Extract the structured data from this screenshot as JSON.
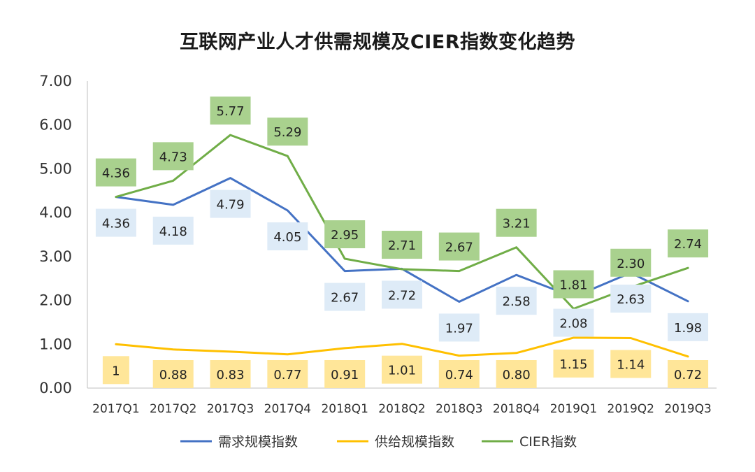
{
  "chart_data": {
    "type": "line",
    "title": "互联网产业人才供需规模及CIER指数变化趋势",
    "xlabel": "",
    "ylabel": "",
    "ylim": [
      0,
      7
    ],
    "yticks": [
      "0.00",
      "1.00",
      "2.00",
      "3.00",
      "4.00",
      "5.00",
      "6.00",
      "7.00"
    ],
    "categories": [
      "2017Q1",
      "2017Q2",
      "2017Q3",
      "2017Q4",
      "2018Q1",
      "2018Q2",
      "2018Q3",
      "2018Q4",
      "2019Q1",
      "2019Q2",
      "2019Q3"
    ],
    "grid": false,
    "legend_position": "bottom",
    "series": [
      {
        "name": "需求规模指数",
        "color": "#4472C4",
        "label_bg": "#DEEBF7",
        "label_side": "below",
        "values": [
          4.36,
          4.18,
          4.79,
          4.05,
          2.67,
          2.72,
          1.97,
          2.58,
          2.08,
          2.63,
          1.98
        ],
        "labels": [
          "4.36",
          "4.18",
          "4.79",
          "4.05",
          "2.67",
          "2.72",
          "1.97",
          "2.58",
          "2.08",
          "2.63",
          "1.98"
        ]
      },
      {
        "name": "供给规模指数",
        "color": "#FFC000",
        "label_bg": "#FFE699",
        "label_side": "below",
        "values": [
          1,
          0.88,
          0.83,
          0.77,
          0.91,
          1.01,
          0.74,
          0.8,
          1.15,
          1.14,
          0.72
        ],
        "labels": [
          "1",
          "0.88",
          "0.83",
          "0.77",
          "0.91",
          "1.01",
          "0.74",
          "0.80",
          "1.15",
          "1.14",
          "0.72"
        ]
      },
      {
        "name": "CIER指数",
        "color": "#70AD47",
        "label_bg": "#A9D18E",
        "label_side": "above",
        "values": [
          4.36,
          4.73,
          5.77,
          5.29,
          2.95,
          2.71,
          2.67,
          3.21,
          1.81,
          2.3,
          2.74
        ],
        "labels": [
          "4.36",
          "4.73",
          "5.77",
          "5.29",
          "2.95",
          "2.71",
          "2.67",
          "3.21",
          "1.81",
          "2.30",
          "2.74"
        ]
      }
    ]
  }
}
